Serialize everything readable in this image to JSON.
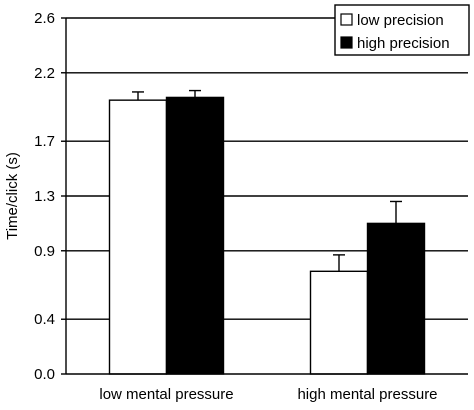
{
  "chart_data": {
    "type": "bar",
    "categories": [
      "low mental pressure",
      "high mental pressure"
    ],
    "series": [
      {
        "name": "low precision",
        "values": [
          2.0,
          0.75
        ],
        "errors": [
          0.06,
          0.12
        ],
        "color": "#ffffff"
      },
      {
        "name": "high precision",
        "values": [
          2.02,
          1.1
        ],
        "errors": [
          0.05,
          0.16
        ],
        "color": "#000000"
      }
    ],
    "ylabel": "Time/click (s)",
    "xlabel": "",
    "title": "",
    "ylim": [
      0.0,
      2.6
    ],
    "yticks": [
      0.0,
      0.4,
      0.9,
      1.3,
      1.7,
      2.2,
      2.6
    ],
    "ytick_labels": [
      "0.0",
      "0.4",
      "0.9",
      "1.3",
      "1.7",
      "2.2",
      "2.6"
    ],
    "grid": true,
    "legend_position": "top-right"
  }
}
